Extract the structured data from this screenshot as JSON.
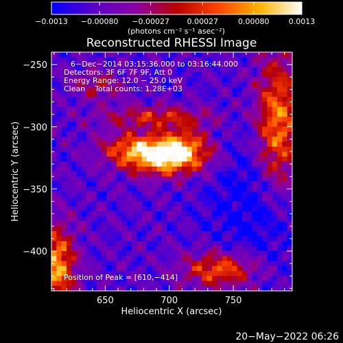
{
  "chart_data": {
    "type": "heatmap",
    "title": "Reconstructed RHESSI Image",
    "xlabel": "Heliocentric X (arcsec)",
    "ylabel": "Heliocentric Y (arcsec)",
    "xlim": [
      608,
      796
    ],
    "ylim": [
      -432,
      -240
    ],
    "x_ticks": [
      650,
      700,
      750
    ],
    "x_tick_labels": [
      "650",
      "700",
      "750"
    ],
    "y_ticks": [
      -250,
      -300,
      -350,
      -400
    ],
    "y_tick_labels": [
      "−250",
      "−300",
      "−350",
      "−400"
    ],
    "colorbar": {
      "min": -0.0013,
      "max": 0.0013,
      "ticks": [
        -0.0013,
        -0.0008,
        -0.00027,
        0.00027,
        0.0008,
        0.0013
      ],
      "tick_labels": [
        "−0.0013",
        "−0.00080",
        "−0.00027",
        "0.00027",
        "0.00080",
        "0.0013"
      ],
      "units": "(photons cm⁻² s⁻¹ asec⁻²)",
      "colormap": [
        "#0000ff",
        "#5a00c8",
        "#8a00a8",
        "#b80000",
        "#ff4400",
        "#ffb400",
        "#ffffff"
      ]
    },
    "annotations": {
      "line1": "6−Dec−2014 03:15:36.000 to 03:16:44.000",
      "line2": "Detectors: 3F 6F 7F 9F, Att 0",
      "line3": "Energy Range: 12.0 − 25.0 keV",
      "line4": "Clean    Total counts: 1.28E+03",
      "peak": "Position of Peak = [610,−414]"
    },
    "peak_position": [
      610,
      -414
    ],
    "sources": [
      {
        "x": 698,
        "y": -325,
        "strength": 1.0,
        "sx": 22,
        "sy": 10
      },
      {
        "x": 672,
        "y": -317,
        "strength": 0.55,
        "sx": 18,
        "sy": 9
      },
      {
        "x": 712,
        "y": -312,
        "strength": 0.45,
        "sx": 14,
        "sy": 10
      },
      {
        "x": 690,
        "y": -292,
        "strength": 0.5,
        "sx": 30,
        "sy": 6
      },
      {
        "x": 785,
        "y": -300,
        "strength": 0.8,
        "sx": 12,
        "sy": 40
      },
      {
        "x": 612,
        "y": -412,
        "strength": 0.85,
        "sx": 10,
        "sy": 22
      },
      {
        "x": 740,
        "y": -415,
        "strength": 0.7,
        "sx": 20,
        "sy": 10
      },
      {
        "x": 645,
        "y": -267,
        "strength": 0.35,
        "sx": 14,
        "sy": 8
      }
    ],
    "background_level": -0.25,
    "grid_resolution": [
      48,
      48
    ]
  },
  "footer": {
    "timestamp": "20−May−2022 06:26"
  }
}
